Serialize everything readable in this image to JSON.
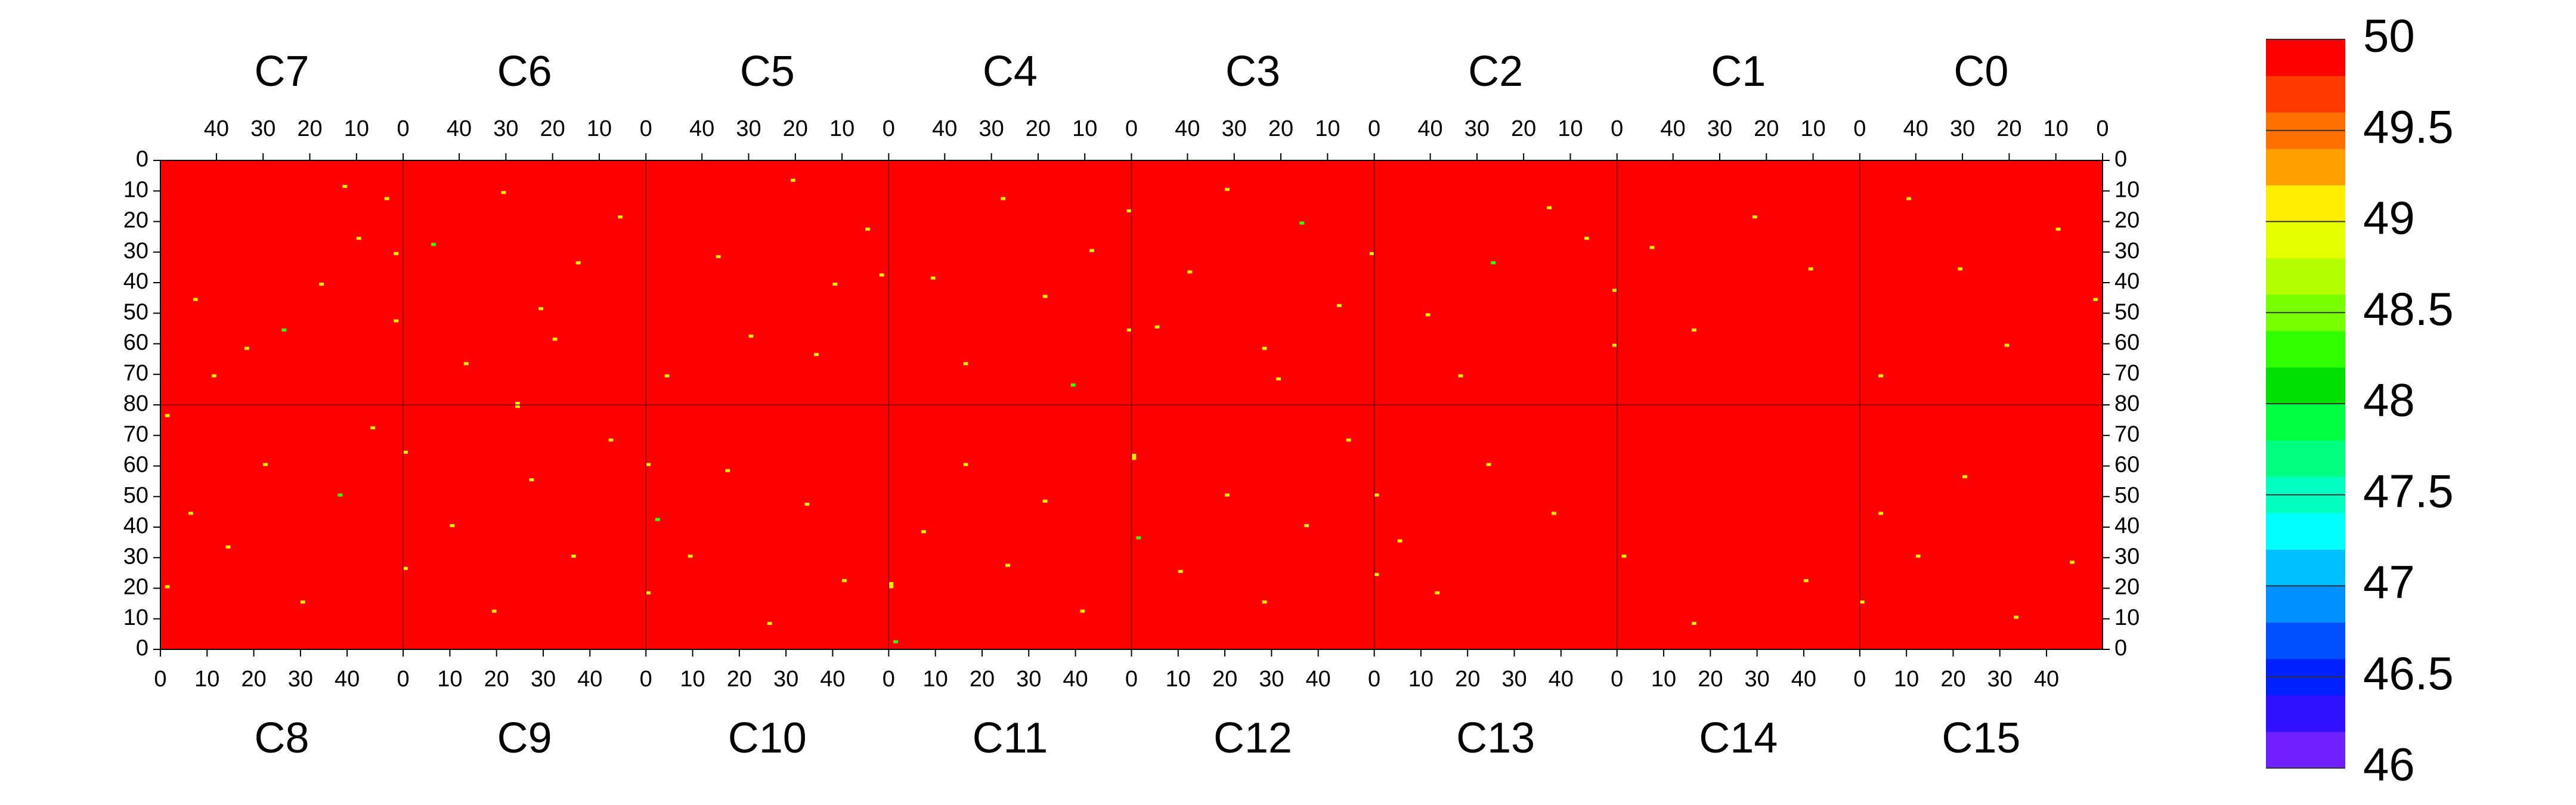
{
  "chart_data": {
    "type": "heatmap",
    "background_value": 50,
    "xlim": [
      0,
      52
    ],
    "xticks": [
      0,
      10,
      20,
      30,
      40
    ],
    "ylim": [
      0,
      80
    ],
    "yticks": [
      0,
      10,
      20,
      30,
      40,
      50,
      60,
      70,
      80
    ],
    "zlim": [
      46,
      50
    ],
    "zticks": [
      46,
      46.5,
      47,
      47.5,
      48,
      48.5,
      49,
      49.5,
      50
    ],
    "colors": [
      "#7020ff",
      "#3010ff",
      "#0020ff",
      "#0050ff",
      "#0090ff",
      "#00c0ff",
      "#00ffff",
      "#00ffc0",
      "#00ff80",
      "#00ff40",
      "#00e000",
      "#30ff00",
      "#78ff00",
      "#b4ff00",
      "#e6ff00",
      "#ffee00",
      "#ffa000",
      "#ff7000",
      "#ff3a00",
      "#ff0000"
    ],
    "top_panels": [
      {
        "label": "C7",
        "x": [
          3,
          9,
          17,
          25,
          33,
          40,
          1,
          1,
          12,
          44
        ],
        "y": [
          12,
          25,
          40,
          55,
          61,
          70,
          30,
          52,
          8,
          45
        ],
        "values": [
          49.1,
          49.1,
          49.1,
          48.3,
          49.1,
          49.1,
          49.1,
          49.1,
          49.1,
          49.1
        ]
      },
      {
        "label": "C6",
        "x": [
          5,
          14,
          22,
          30,
          38,
          45,
          27,
          19
        ],
        "y": [
          18,
          33,
          48,
          10,
          66,
          27,
          79,
          58
        ],
        "values": [
          49.1,
          49.1,
          49.1,
          49.1,
          49.1,
          48.3,
          49.1,
          49.1
        ]
      },
      {
        "label": "C5",
        "x": [
          4,
          11,
          20,
          29,
          36,
          47,
          1,
          15
        ],
        "y": [
          22,
          40,
          6,
          57,
          31,
          70,
          37,
          63
        ],
        "values": [
          49.1,
          49.1,
          49.1,
          49.1,
          49.1,
          49.1,
          49.1,
          49.1
        ]
      },
      {
        "label": "C4",
        "x": [
          0,
          0,
          8,
          18,
          27,
          35,
          42,
          12
        ],
        "y": [
          16,
          55,
          29,
          44,
          12,
          66,
          38,
          73
        ],
        "values": [
          49.1,
          49.1,
          49.1,
          49.1,
          49.1,
          49.1,
          49.1,
          48.3
        ]
      },
      {
        "label": "C3",
        "x": [
          0,
          7,
          15,
          23,
          31,
          39,
          20,
          46
        ],
        "y": [
          30,
          47,
          20,
          61,
          9,
          36,
          71,
          54
        ],
        "values": [
          49.1,
          49.1,
          48.3,
          49.1,
          49.1,
          49.1,
          49.1,
          49.1
        ]
      },
      {
        "label": "C2",
        "x": [
          0,
          0,
          6,
          14,
          26,
          40,
          33
        ],
        "y": [
          42,
          60,
          25,
          15,
          33,
          50,
          70
        ],
        "values": [
          49.1,
          49.1,
          49.1,
          49.1,
          48.3,
          49.1,
          49.1
        ]
      },
      {
        "label": "C1",
        "x": [
          10,
          22,
          35,
          44
        ],
        "y": [
          35,
          18,
          55,
          28
        ],
        "values": [
          49.1,
          49.1,
          49.1,
          49.1
        ]
      },
      {
        "label": "C0",
        "x": [
          1,
          9,
          20,
          30,
          41,
          47
        ],
        "y": [
          45,
          22,
          60,
          35,
          12,
          70
        ],
        "values": [
          49.1,
          49.1,
          49.1,
          49.1,
          49.1,
          49.1
        ]
      }
    ],
    "bottom_panels": [
      {
        "label": "C8",
        "x": [
          1,
          6,
          14,
          22,
          30,
          38,
          45,
          1
        ],
        "y": [
          20,
          44,
          33,
          60,
          15,
          50,
          72,
          76
        ],
        "values": [
          49.1,
          49.1,
          49.1,
          49.1,
          49.1,
          48.3,
          49.1,
          49.1
        ]
      },
      {
        "label": "C9",
        "x": [
          0,
          0,
          10,
          19,
          27,
          36,
          44,
          24
        ],
        "y": [
          26,
          64,
          40,
          12,
          55,
          30,
          68,
          79
        ],
        "values": [
          49.1,
          49.1,
          49.1,
          49.1,
          49.1,
          49.1,
          49.1,
          49.1
        ]
      },
      {
        "label": "C10",
        "x": [
          0,
          2,
          9,
          17,
          26,
          34,
          42,
          0
        ],
        "y": [
          18,
          42,
          30,
          58,
          8,
          47,
          22,
          60
        ],
        "values": [
          49.1,
          48.3,
          49.1,
          49.1,
          49.1,
          49.1,
          49.1,
          49.1
        ]
      },
      {
        "label": "C11",
        "x": [
          0,
          0,
          1,
          7,
          16,
          25,
          33,
          41
        ],
        "y": [
          20,
          21,
          2,
          38,
          60,
          27,
          48,
          12
        ],
        "values": [
          49.1,
          49.1,
          48.3,
          49.1,
          49.1,
          49.1,
          49.1,
          49.1
        ]
      },
      {
        "label": "C12",
        "x": [
          0,
          0,
          1,
          10,
          20,
          28,
          37,
          46
        ],
        "y": [
          62,
          63,
          36,
          25,
          50,
          15,
          40,
          68
        ],
        "values": [
          49.1,
          49.1,
          48.3,
          49.1,
          49.1,
          49.1,
          49.1,
          49.1
        ]
      },
      {
        "label": "C13",
        "x": [
          0,
          0,
          5,
          13,
          24,
          38
        ],
        "y": [
          24,
          50,
          35,
          18,
          60,
          44
        ],
        "values": [
          49.1,
          49.1,
          49.1,
          49.1,
          49.1,
          49.1
        ]
      },
      {
        "label": "C14",
        "x": [
          1,
          16,
          40
        ],
        "y": [
          30,
          8,
          22
        ],
        "values": [
          49.1,
          49.1,
          49.1
        ]
      },
      {
        "label": "C15",
        "x": [
          0,
          4,
          12,
          22,
          33,
          45
        ],
        "y": [
          15,
          44,
          30,
          56,
          10,
          28
        ],
        "values": [
          49.1,
          49.1,
          49.1,
          49.1,
          49.1,
          49.1
        ]
      }
    ]
  }
}
